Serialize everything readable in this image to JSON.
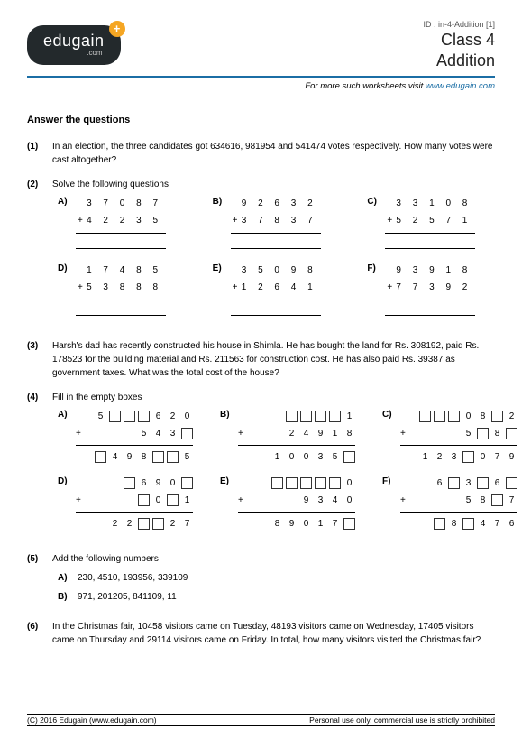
{
  "header": {
    "logo_main": "edugain",
    "logo_sub": ".com",
    "logo_plus": "+",
    "doc_id": "ID : in-4-Addition [1]",
    "class_line": "Class 4",
    "topic_line": "Addition",
    "more_prefix": "For more such worksheets visit ",
    "more_link": "www.edugain.com"
  },
  "section_title": "Answer the questions",
  "questions": {
    "q1": {
      "num": "(1)",
      "text": "In an election, the three candidates got 634616, 981954 and 541474 votes respectively. How many votes were cast altogether?"
    },
    "q2": {
      "num": "(2)",
      "text": "Solve the following questions",
      "problems": [
        {
          "label": "A)",
          "a": "3 7 0 8 7",
          "b": "4 2 2 3 5"
        },
        {
          "label": "B)",
          "a": "9 2 6 3 2",
          "b": "3 7 8 3 7"
        },
        {
          "label": "C)",
          "a": "3 3 1 0 8",
          "b": "5 2 5 7 1"
        },
        {
          "label": "D)",
          "a": "1 7 4 8 5",
          "b": "5 3 8 8 8"
        },
        {
          "label": "E)",
          "a": "3 5 0 9 8",
          "b": "1 2 6 4 1"
        },
        {
          "label": "F)",
          "a": "9 3 9 1 8",
          "b": "7 7 3 9 2"
        }
      ]
    },
    "q3": {
      "num": "(3)",
      "text": "Harsh's dad has recently constructed his house in Shimla. He has bought the land for Rs. 308192, paid Rs. 178523 for the building material and Rs. 211563 for construction cost. He has also paid Rs. 39387 as government taxes. What was the total cost of the house?"
    },
    "q4": {
      "num": "(4)",
      "text": "Fill in the empty boxes",
      "problems": [
        {
          "label": "A)",
          "r1": [
            "5",
            "_",
            "_",
            "_",
            "6",
            "2",
            "0"
          ],
          "r2": [
            "",
            "",
            "",
            "5",
            "4",
            "3",
            "_"
          ],
          "r3": [
            "_",
            "4",
            "9",
            "8",
            "_",
            "_",
            "5"
          ]
        },
        {
          "label": "B)",
          "r1": [
            "",
            "_",
            "_",
            "_",
            "_",
            "1"
          ],
          "r2": [
            "",
            "2",
            "4",
            "9",
            "1",
            "8"
          ],
          "r3": [
            "1",
            "0",
            "0",
            "3",
            "5",
            "_"
          ]
        },
        {
          "label": "C)",
          "r1": [
            "_",
            "_",
            "_",
            "0",
            "8",
            "_",
            "2"
          ],
          "r2": [
            "",
            "",
            "",
            "5",
            "_",
            "8",
            "_"
          ],
          "r3": [
            "1",
            "2",
            "3",
            "_",
            "0",
            "7",
            "9"
          ]
        },
        {
          "label": "D)",
          "r1": [
            "",
            "_",
            "6",
            "9",
            "0",
            "_"
          ],
          "r2": [
            "",
            "",
            "_",
            "0",
            "_",
            "1"
          ],
          "r3": [
            "2",
            "2",
            "_",
            "_",
            "2",
            "7"
          ]
        },
        {
          "label": "E)",
          "r1": [
            "_",
            "_",
            "_",
            "_",
            "_",
            "0"
          ],
          "r2": [
            "",
            "",
            "9",
            "3",
            "4",
            "0"
          ],
          "r3": [
            "8",
            "9",
            "0",
            "1",
            "7",
            "_"
          ]
        },
        {
          "label": "F)",
          "r1": [
            "6",
            "_",
            "3",
            "_",
            "6",
            "_"
          ],
          "r2": [
            "",
            "",
            "5",
            "8",
            "_",
            "7"
          ],
          "r3": [
            "_",
            "8",
            "_",
            "4",
            "7",
            "6"
          ]
        }
      ]
    },
    "q5": {
      "num": "(5)",
      "text": "Add the following numbers",
      "subs": [
        {
          "label": "A)",
          "text": "230, 4510, 193956, 339109"
        },
        {
          "label": "B)",
          "text": "971, 201205, 841109, 11"
        }
      ]
    },
    "q6": {
      "num": "(6)",
      "text": "In the Christmas fair, 10458 visitors came on Tuesday, 48193 visitors came on Wednesday, 17405 visitors came on Thursday and 29114 visitors came on Friday. In total, how many visitors visited the Christmas fair?"
    }
  },
  "footer": {
    "left": "(C) 2016 Edugain (www.edugain.com)",
    "right": "Personal use only, commercial use is strictly prohibited"
  }
}
